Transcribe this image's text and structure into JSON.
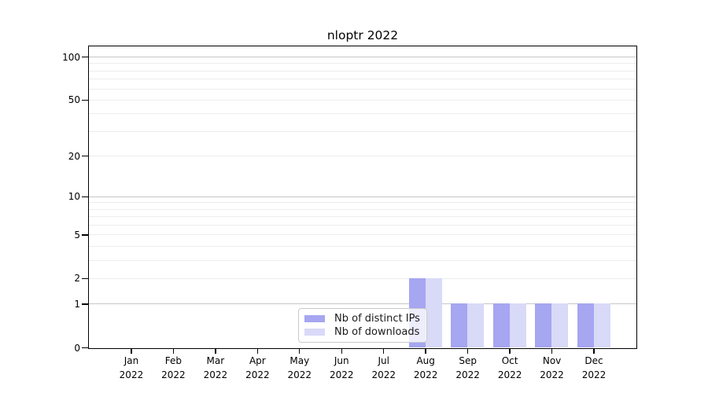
{
  "chart_data": {
    "type": "bar",
    "title": "nloptr 2022",
    "categories": [
      "Jan",
      "Feb",
      "Mar",
      "Apr",
      "May",
      "Jun",
      "Jul",
      "Aug",
      "Sep",
      "Oct",
      "Nov",
      "Dec"
    ],
    "category_year": "2022",
    "series": [
      {
        "name": "Nb of distinct IPs",
        "color": "#a6a6f1",
        "values": [
          0,
          0,
          0,
          0,
          0,
          0,
          0,
          2,
          1,
          1,
          1,
          1
        ]
      },
      {
        "name": "Nb of downloads",
        "color": "#d9d9f8",
        "values": [
          0,
          0,
          0,
          0,
          0,
          0,
          0,
          2,
          1,
          1,
          1,
          1
        ]
      }
    ],
    "xlabel": "",
    "ylabel": "",
    "y_axis": {
      "scale": "log1p",
      "ticks": [
        0,
        1,
        2,
        5,
        10,
        20,
        50,
        100
      ],
      "max": 118,
      "minor_gridlines": [
        2,
        3,
        4,
        5,
        6,
        7,
        8,
        9,
        20,
        30,
        40,
        50,
        60,
        70,
        80,
        90
      ],
      "major_gridlines": [
        1,
        10,
        100
      ]
    },
    "legend": {
      "position": "lower-center",
      "entries": [
        "Nb of distinct IPs",
        "Nb of downloads"
      ]
    },
    "style": {
      "bar_color_distinct_ips": "#a6a6f1",
      "bar_color_downloads": "#d9d9f8",
      "grid_minor_color": "#ededed",
      "grid_major_color": "#c6c6c6",
      "spine_color": "#000000",
      "background_color": "#ffffff"
    }
  }
}
